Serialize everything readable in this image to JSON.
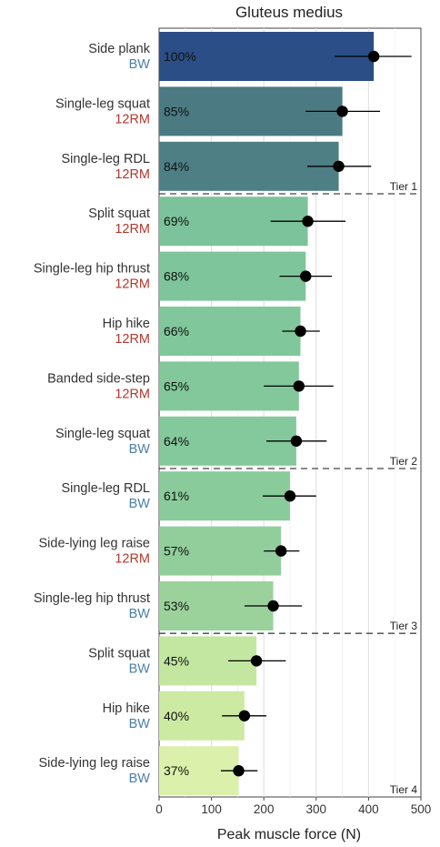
{
  "chart_data": {
    "type": "bar",
    "orientation": "horizontal",
    "title": "Gluteus medius",
    "xlabel": "Peak muscle force (N)",
    "xlim": [
      0,
      500
    ],
    "xticks": [
      "0",
      "100",
      "200",
      "300",
      "400",
      "500"
    ],
    "grid": true,
    "bars": [
      {
        "exercise": "Side plank",
        "load": "BW",
        "percent": "100%",
        "value": 410,
        "err_low": 335,
        "err_high": 482,
        "color": "#2b4e86"
      },
      {
        "exercise": "Single-leg squat",
        "load": "12RM",
        "percent": "85%",
        "value": 350,
        "err_low": 280,
        "err_high": 422,
        "color": "#4b7a83"
      },
      {
        "exercise": "Single-leg RDL",
        "load": "12RM",
        "percent": "84%",
        "value": 343,
        "err_low": 283,
        "err_high": 405,
        "color": "#4d7f84"
      },
      {
        "exercise": "Split squat",
        "load": "12RM",
        "percent": "69%",
        "value": 284,
        "err_low": 213,
        "err_high": 356,
        "color": "#7cc39b"
      },
      {
        "exercise": "Single-leg hip thrust",
        "load": "12RM",
        "percent": "68%",
        "value": 280,
        "err_low": 230,
        "err_high": 330,
        "color": "#7ec59b"
      },
      {
        "exercise": "Hip hike",
        "load": "12RM",
        "percent": "66%",
        "value": 270,
        "err_low": 235,
        "err_high": 307,
        "color": "#80c79b"
      },
      {
        "exercise": "Banded side-step",
        "load": "12RM",
        "percent": "65%",
        "value": 267,
        "err_low": 200,
        "err_high": 333,
        "color": "#82c89b"
      },
      {
        "exercise": "Single-leg squat",
        "load": "BW",
        "percent": "64%",
        "value": 262,
        "err_low": 205,
        "err_high": 320,
        "color": "#84c99b"
      },
      {
        "exercise": "Single-leg RDL",
        "load": "BW",
        "percent": "61%",
        "value": 250,
        "err_low": 198,
        "err_high": 300,
        "color": "#8acb9b"
      },
      {
        "exercise": "Side-lying leg raise",
        "load": "12RM",
        "percent": "57%",
        "value": 233,
        "err_low": 200,
        "err_high": 268,
        "color": "#92ce9c"
      },
      {
        "exercise": "Single-leg hip thrust",
        "load": "BW",
        "percent": "53%",
        "value": 218,
        "err_low": 163,
        "err_high": 273,
        "color": "#9bd29c"
      },
      {
        "exercise": "Split squat",
        "load": "BW",
        "percent": "45%",
        "value": 186,
        "err_low": 132,
        "err_high": 242,
        "color": "#c3e6a1"
      },
      {
        "exercise": "Hip hike",
        "load": "BW",
        "percent": "40%",
        "value": 163,
        "err_low": 120,
        "err_high": 205,
        "color": "#cdeaa3"
      },
      {
        "exercise": "Side-lying leg raise",
        "load": "BW",
        "percent": "37%",
        "value": 152,
        "err_low": 118,
        "err_high": 188,
        "color": "#dbf0aa"
      }
    ],
    "tiers": [
      {
        "label": "Tier 1",
        "after_index": 2
      },
      {
        "label": "Tier 2",
        "after_index": 7
      },
      {
        "label": "Tier 3",
        "after_index": 10
      },
      {
        "label": "Tier 4",
        "after_index": 13
      }
    ]
  }
}
